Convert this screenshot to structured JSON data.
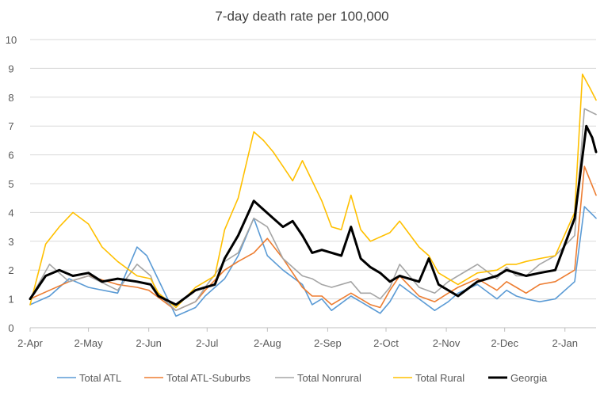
{
  "chart_data": {
    "type": "line",
    "title": "7-day death rate per 100,000",
    "xlabel": "",
    "ylabel": "",
    "ylim": [
      0,
      10
    ],
    "y_ticks": [
      "0",
      "1",
      "2",
      "3",
      "4",
      "5",
      "6",
      "7",
      "8",
      "9",
      "10"
    ],
    "x_tick_labels": [
      "2-Apr",
      "2-May",
      "2-Jun",
      "2-Jul",
      "2-Aug",
      "2-Sep",
      "2-Oct",
      "2-Nov",
      "2-Dec",
      "2-Jan"
    ],
    "grid": "horizontal",
    "legend_position": "bottom",
    "x_unit": "days from 2-Apr",
    "series": [
      {
        "name": "Total ATL",
        "color": "#5B9BD5",
        "width": 1.6,
        "x": [
          0,
          10,
          20,
          30,
          45,
          55,
          60,
          65,
          75,
          85,
          90,
          100,
          107,
          115,
          122,
          130,
          140,
          145,
          150,
          155,
          165,
          170,
          175,
          180,
          185,
          190,
          200,
          208,
          215,
          220,
          230,
          240,
          245,
          250,
          255,
          262,
          270,
          280,
          285,
          291
        ],
        "values": [
          0.8,
          1.1,
          1.7,
          1.4,
          1.2,
          2.8,
          2.5,
          1.8,
          0.4,
          0.7,
          1.1,
          1.7,
          2.5,
          3.8,
          2.5,
          2.0,
          1.5,
          0.8,
          1.0,
          0.6,
          1.1,
          0.9,
          0.7,
          0.5,
          0.9,
          1.5,
          1.0,
          0.6,
          0.9,
          1.2,
          1.5,
          1.0,
          1.3,
          1.1,
          1.0,
          0.9,
          1.0,
          1.6,
          4.2,
          3.8
        ]
      },
      {
        "name": "Total ATL-Suburbs",
        "color": "#ED7D31",
        "width": 1.6,
        "x": [
          0,
          10,
          20,
          30,
          45,
          55,
          61,
          65,
          75,
          85,
          90,
          100,
          107,
          115,
          122,
          130,
          140,
          145,
          150,
          155,
          165,
          170,
          175,
          180,
          185,
          190,
          200,
          208,
          215,
          220,
          230,
          240,
          245,
          250,
          255,
          262,
          270,
          280,
          285,
          291
        ],
        "values": [
          1.0,
          1.3,
          1.6,
          1.8,
          1.5,
          1.4,
          1.3,
          1.1,
          0.6,
          0.9,
          1.3,
          2.0,
          2.3,
          2.6,
          3.1,
          2.4,
          1.4,
          1.1,
          1.1,
          0.8,
          1.2,
          1.0,
          0.8,
          0.7,
          1.3,
          1.8,
          1.1,
          0.9,
          1.2,
          1.4,
          1.7,
          1.3,
          1.6,
          1.4,
          1.2,
          1.5,
          1.6,
          2.0,
          5.6,
          4.6
        ]
      },
      {
        "name": "Total Nonrural",
        "color": "#A5A5A5",
        "width": 1.6,
        "x": [
          0,
          10,
          20,
          30,
          45,
          55,
          62,
          65,
          75,
          85,
          90,
          100,
          107,
          115,
          122,
          130,
          140,
          145,
          150,
          155,
          165,
          170,
          175,
          180,
          185,
          190,
          200,
          208,
          215,
          220,
          230,
          240,
          245,
          250,
          255,
          262,
          270,
          280,
          285,
          291
        ],
        "values": [
          1.0,
          2.2,
          1.6,
          1.8,
          1.3,
          2.2,
          1.8,
          1.2,
          0.6,
          0.9,
          1.4,
          2.3,
          2.6,
          3.8,
          3.5,
          2.4,
          1.8,
          1.7,
          1.5,
          1.4,
          1.6,
          1.2,
          1.2,
          1.0,
          1.4,
          2.2,
          1.4,
          1.2,
          1.6,
          1.8,
          2.2,
          1.7,
          2.1,
          1.8,
          1.8,
          2.2,
          2.5,
          3.2,
          7.6,
          7.4
        ]
      },
      {
        "name": "Total Rural",
        "color": "#FFC000",
        "width": 1.6,
        "x": [
          0,
          8,
          15,
          22,
          30,
          37,
          45,
          55,
          62,
          66,
          75,
          85,
          95,
          100,
          107,
          115,
          120,
          125,
          130,
          135,
          140,
          150,
          155,
          160,
          165,
          170,
          175,
          185,
          190,
          200,
          205,
          210,
          220,
          230,
          240,
          245,
          250,
          255,
          262,
          270,
          280,
          284,
          288,
          291
        ],
        "values": [
          0.8,
          2.9,
          3.5,
          4.0,
          3.6,
          2.8,
          2.3,
          1.8,
          1.7,
          1.2,
          0.7,
          1.4,
          1.8,
          3.4,
          4.5,
          6.8,
          6.5,
          6.1,
          5.6,
          5.1,
          5.8,
          4.4,
          3.5,
          3.4,
          4.6,
          3.4,
          3.0,
          3.3,
          3.7,
          2.8,
          2.5,
          1.9,
          1.5,
          1.9,
          2.0,
          2.2,
          2.2,
          2.3,
          2.4,
          2.5,
          4.0,
          8.8,
          8.3,
          7.9
        ]
      },
      {
        "name": "Georgia",
        "color": "#000000",
        "width": 3,
        "x": [
          0,
          8,
          15,
          22,
          30,
          37,
          45,
          55,
          62,
          66,
          75,
          85,
          95,
          100,
          107,
          115,
          120,
          125,
          130,
          135,
          140,
          145,
          150,
          160,
          165,
          170,
          175,
          180,
          185,
          190,
          200,
          205,
          210,
          220,
          230,
          240,
          245,
          250,
          255,
          262,
          270,
          280,
          286,
          289,
          291
        ],
        "values": [
          1.0,
          1.8,
          2.0,
          1.8,
          1.9,
          1.6,
          1.7,
          1.6,
          1.5,
          1.1,
          0.8,
          1.3,
          1.5,
          2.4,
          3.2,
          4.4,
          4.1,
          3.8,
          3.5,
          3.7,
          3.2,
          2.6,
          2.7,
          2.5,
          3.5,
          2.4,
          2.1,
          1.9,
          1.6,
          1.8,
          1.6,
          2.4,
          1.5,
          1.1,
          1.6,
          1.8,
          2.0,
          1.9,
          1.8,
          1.9,
          2.0,
          3.8,
          7.0,
          6.6,
          6.1
        ]
      }
    ]
  }
}
